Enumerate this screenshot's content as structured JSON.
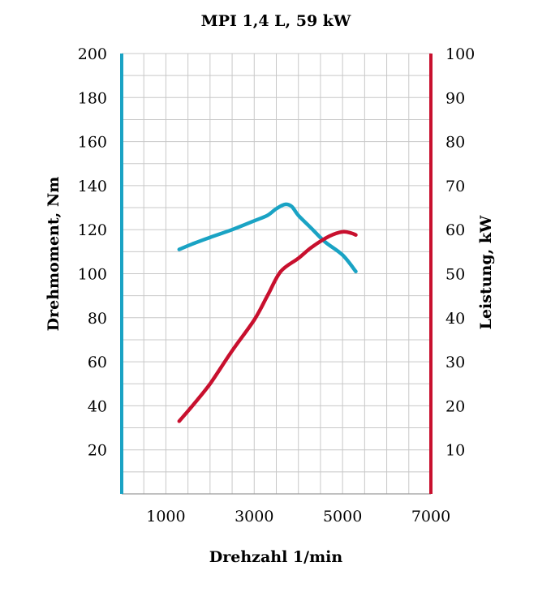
{
  "chart_data": {
    "type": "line",
    "title": "MPI 1,4 L, 59 kW",
    "xlabel": "Drehzahl 1/min",
    "ylabel_left": "Drehmoment, Nm",
    "ylabel_right": "Leistung, kW",
    "xlim": [
      0,
      7000
    ],
    "ylim_left": [
      0,
      200
    ],
    "ylim_right": [
      0,
      100
    ],
    "x_ticks": [
      1000,
      3000,
      5000,
      7000
    ],
    "y_ticks_left": [
      20,
      40,
      60,
      80,
      100,
      120,
      140,
      160,
      180,
      200
    ],
    "y_ticks_right": [
      10,
      20,
      30,
      40,
      50,
      60,
      70,
      80,
      90,
      100
    ],
    "grid": true,
    "colors": {
      "torque": "#1aa3c4",
      "power": "#c8102e",
      "grid": "#c8c8c8"
    },
    "series": [
      {
        "axis": "left",
        "color": "#1aa3c4",
        "x": [
          1300,
          1600,
          2000,
          2500,
          3000,
          3300,
          3500,
          3700,
          3850,
          4000,
          4300,
          4600,
          5000,
          5300
        ],
        "y": [
          111,
          113.5,
          116.5,
          120,
          124,
          126.5,
          129.5,
          131.5,
          130.5,
          126.5,
          120.5,
          114.5,
          108.5,
          101
        ]
      },
      {
        "axis": "right",
        "color": "#c8102e",
        "x": [
          1300,
          1600,
          2000,
          2500,
          3000,
          3300,
          3600,
          4000,
          4300,
          4700,
          5000,
          5200,
          5300
        ],
        "y": [
          16.5,
          20,
          25,
          32.5,
          39.5,
          45,
          50.5,
          53.5,
          56,
          58.5,
          59.5,
          59.2,
          58.8
        ]
      }
    ]
  }
}
